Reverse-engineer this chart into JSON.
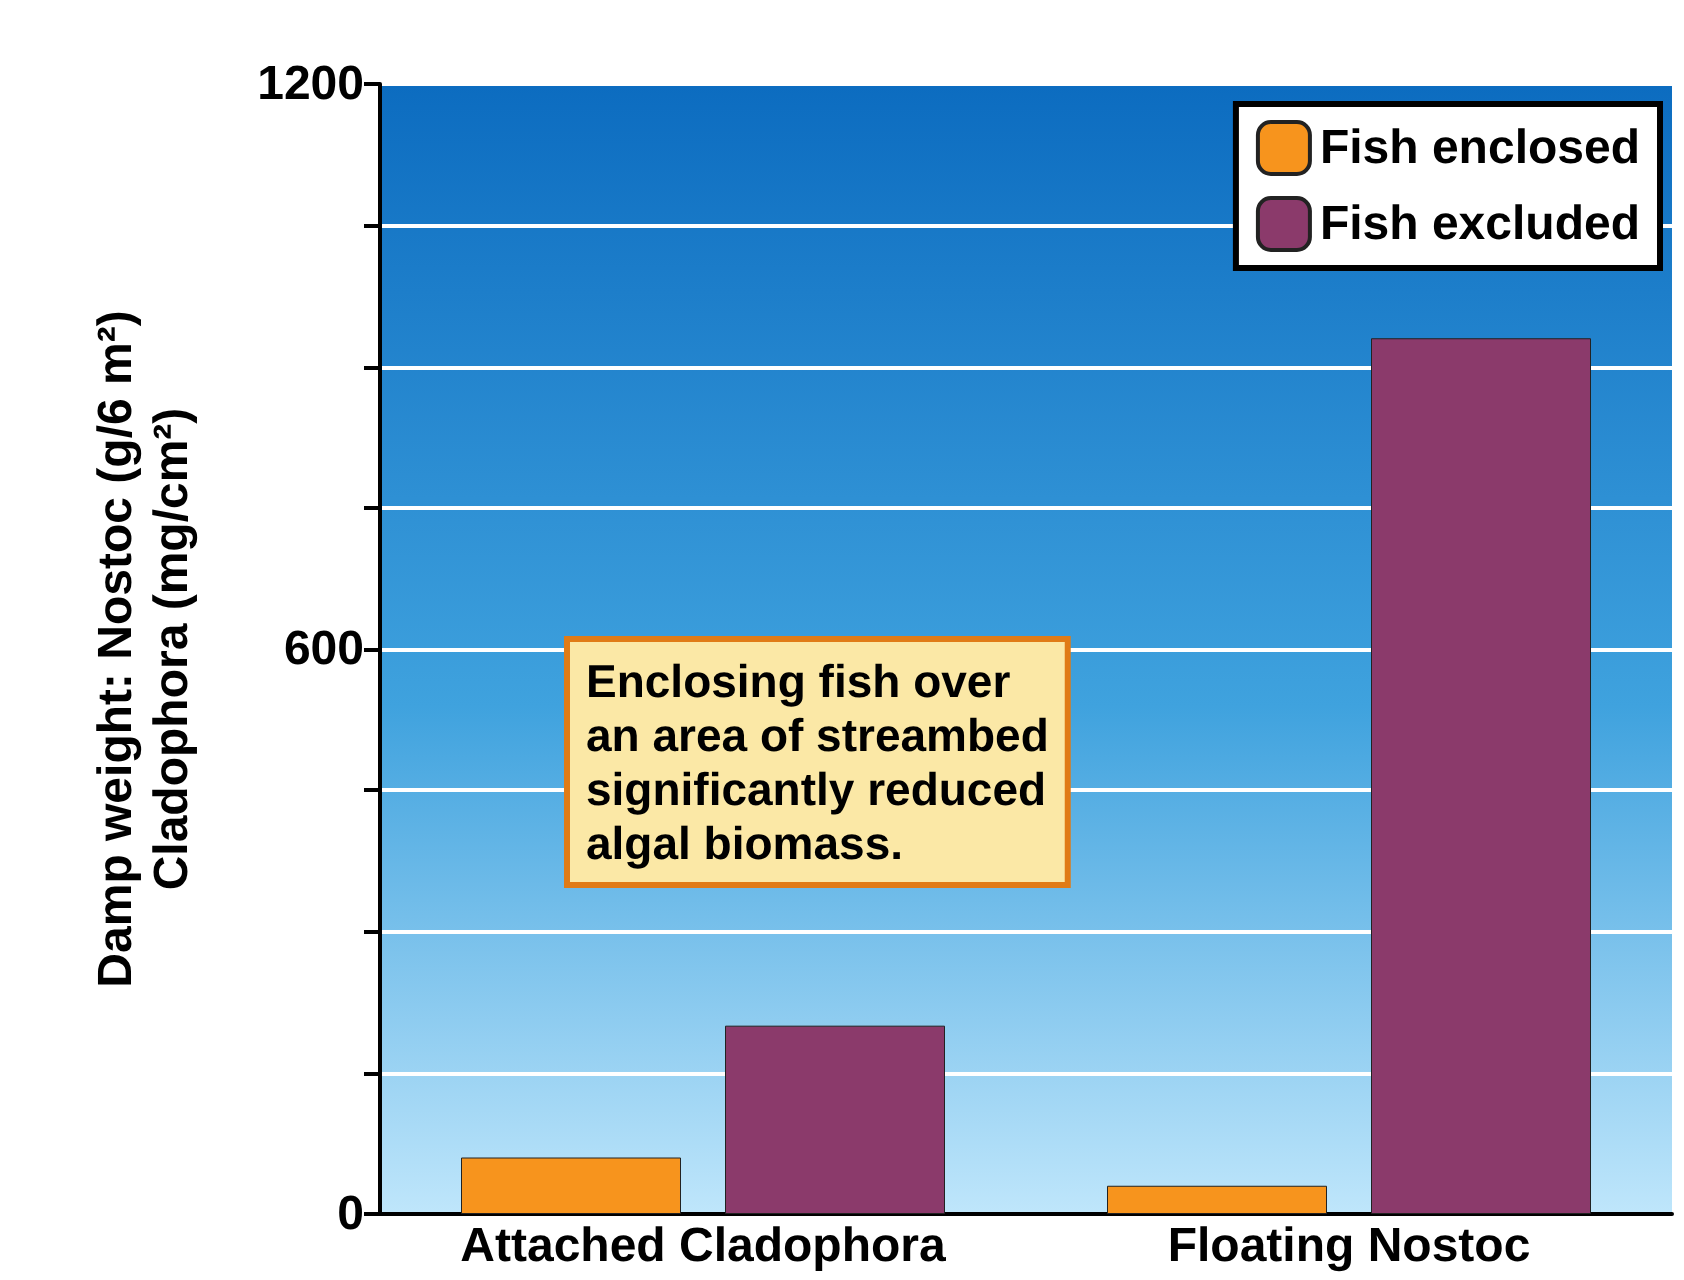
{
  "chart_data": {
    "type": "bar",
    "ylabel": "Damp weight: Nostoc (g/6 m²)\nCladophora (mg/cm²)",
    "categories": [
      "Attached Cladophora",
      "Floating Nostoc"
    ],
    "series": [
      {
        "name": "Fish enclosed",
        "color": "#f7941d",
        "values": [
          60,
          30
        ]
      },
      {
        "name": "Fish excluded",
        "color": "#8b3a6b",
        "values": [
          200,
          930
        ]
      }
    ],
    "ylim": [
      0,
      1200
    ],
    "yticks": [
      0,
      {
        "value": 150,
        "label": null
      },
      {
        "value": 300,
        "label": null
      },
      {
        "value": 450,
        "label": null
      },
      600,
      {
        "value": 750,
        "label": null
      },
      {
        "value": 900,
        "label": null
      },
      {
        "value": 1050,
        "label": null
      },
      1200
    ],
    "grid": "y",
    "legend": "top right",
    "annotations": [
      "Enclosing fish over\nan area of streambed\nsignificantly reduced\nalgal biomass."
    ]
  }
}
